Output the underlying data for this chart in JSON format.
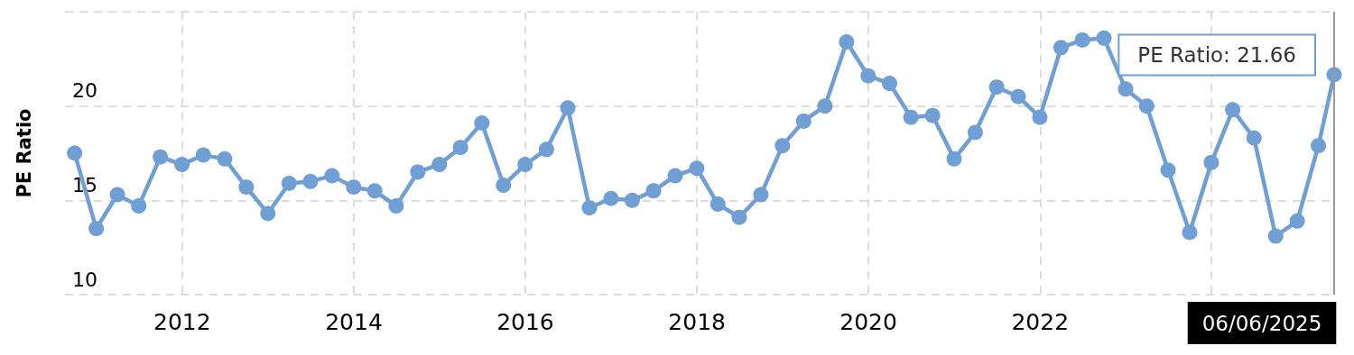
{
  "chart_data": {
    "type": "line",
    "ylabel": "PE Ratio",
    "x": [
      "2010-09-30",
      "2010-12-31",
      "2011-03-31",
      "2011-06-30",
      "2011-09-30",
      "2011-12-31",
      "2012-03-31",
      "2012-06-30",
      "2012-09-30",
      "2012-12-31",
      "2013-03-31",
      "2013-06-30",
      "2013-09-30",
      "2013-12-31",
      "2014-03-31",
      "2014-06-30",
      "2014-09-30",
      "2014-12-31",
      "2015-03-31",
      "2015-06-30",
      "2015-09-30",
      "2015-12-31",
      "2016-03-31",
      "2016-06-30",
      "2016-09-30",
      "2016-12-31",
      "2017-03-31",
      "2017-06-30",
      "2017-09-30",
      "2017-12-31",
      "2018-03-31",
      "2018-06-30",
      "2018-09-30",
      "2018-12-31",
      "2019-03-31",
      "2019-06-30",
      "2019-09-30",
      "2019-12-31",
      "2020-03-31",
      "2020-06-30",
      "2020-09-30",
      "2020-12-31",
      "2021-03-31",
      "2021-06-30",
      "2021-09-30",
      "2021-12-31",
      "2022-03-31",
      "2022-06-30",
      "2022-09-30",
      "2022-12-31",
      "2023-03-31",
      "2023-06-30",
      "2023-09-30",
      "2023-12-31",
      "2024-03-31",
      "2024-06-30",
      "2024-09-30",
      "2024-12-31",
      "2025-03-31",
      "2025-06-06"
    ],
    "series": [
      {
        "color": "#6f9fd4",
        "values": [
          17.5,
          13.5,
          15.3,
          14.7,
          17.3,
          16.9,
          17.4,
          17.2,
          15.7,
          14.3,
          15.9,
          16.0,
          16.3,
          15.7,
          15.5,
          14.7,
          16.5,
          16.9,
          17.8,
          19.1,
          15.8,
          16.9,
          17.7,
          19.9,
          14.6,
          15.1,
          15.0,
          15.5,
          16.3,
          16.7,
          14.8,
          14.1,
          15.3,
          17.9,
          19.2,
          20.0,
          23.4,
          21.6,
          21.2,
          19.4,
          19.5,
          17.2,
          18.6,
          21.0,
          20.5,
          19.4,
          23.1,
          23.5,
          23.6,
          20.9,
          20.0,
          16.6,
          13.3,
          17.0,
          19.8,
          18.3,
          13.1,
          13.9,
          17.9,
          21.66
        ]
      }
    ],
    "xlim": [
      "2010-08-20",
      "2025-06-06"
    ],
    "xticks": [
      {
        "value": "2012",
        "label": "2012"
      },
      {
        "value": "2014",
        "label": "2014"
      },
      {
        "value": "2016",
        "label": "2016"
      },
      {
        "value": "2018",
        "label": "2018"
      },
      {
        "value": "2020",
        "label": "2020"
      },
      {
        "value": "2022",
        "label": "2022"
      },
      {
        "value": "2024",
        "label": null
      }
    ],
    "ylim": [
      10,
      25
    ],
    "yticks": [
      10,
      15,
      20,
      {
        "value": 25,
        "label": null
      }
    ],
    "grid": true,
    "marker": "circle",
    "line_style": "solid",
    "ref_lines": [
      {
        "axis": "x",
        "value": "2025-06-06",
        "label": "06/06/2025",
        "color": "#999999"
      }
    ],
    "annotations": [
      {
        "text": "PE Ratio: 21.66",
        "x": "2025-06-06",
        "y": 21.66
      }
    ]
  }
}
